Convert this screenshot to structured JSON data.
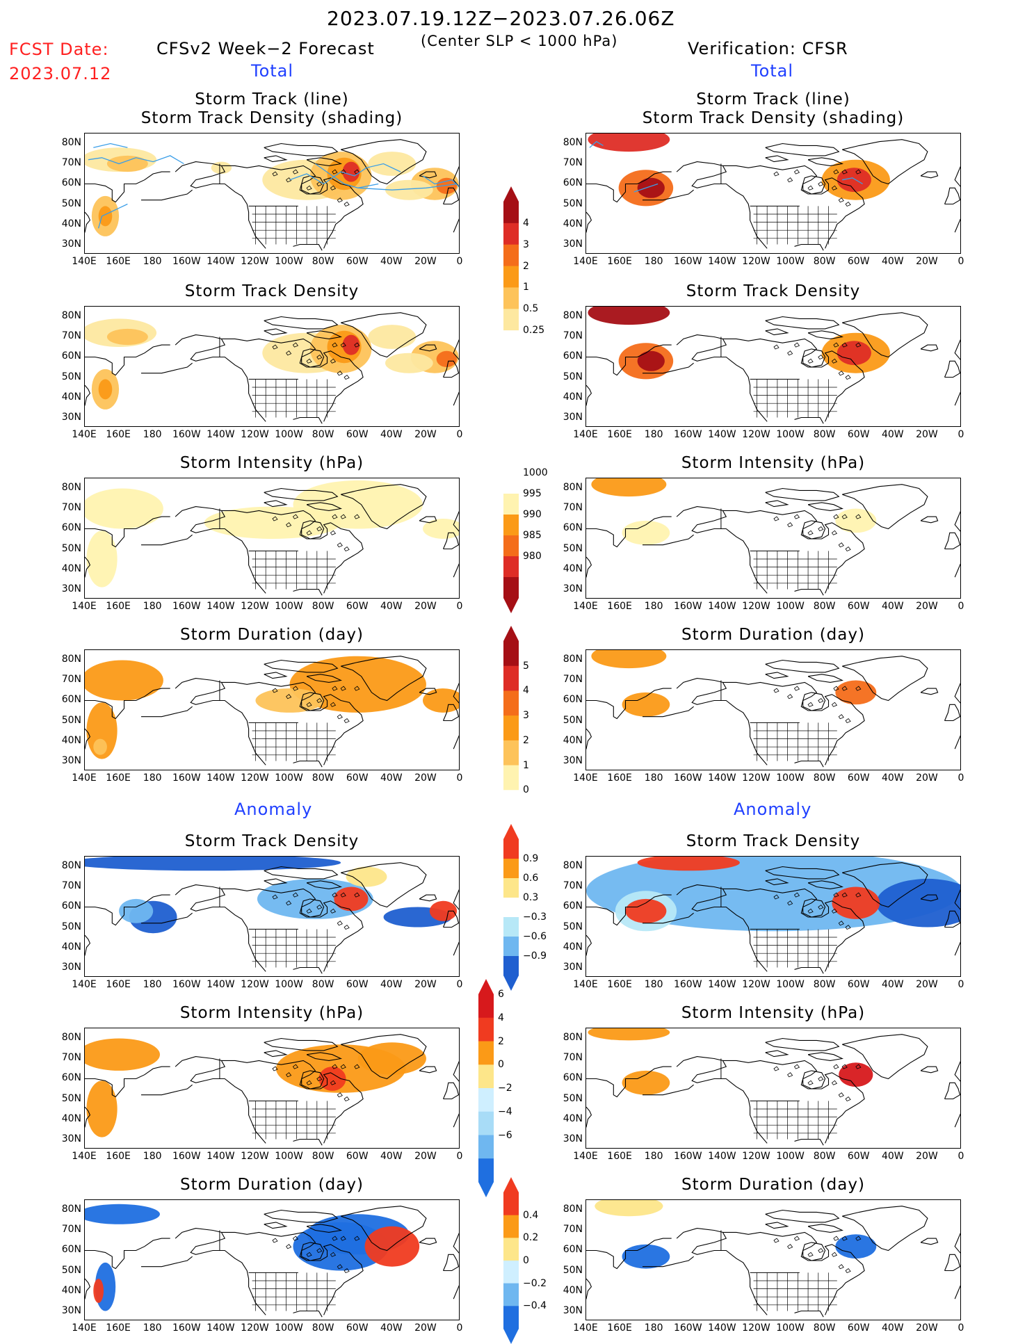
{
  "header": {
    "date_range": "2023.07.19.12Z−2023.07.26.06Z",
    "fcst_label": "FCST Date:",
    "fcst_date": "2023.07.12",
    "left_title": "CFSv2 Week−2 Forecast",
    "center_sub": "(Center SLP < 1000 hPa)",
    "right_title": "Verification: CFSR",
    "left_total": "Total",
    "right_total": "Total",
    "left_anomaly": "Anomaly",
    "right_anomaly": "Anomaly"
  },
  "panel_titles": {
    "track_line": "Storm Track (line)",
    "track_density_shading": "Storm Track Density (shading)",
    "density": "Storm Track Density",
    "intensity": "Storm Intensity (hPa)",
    "duration": "Storm Duration (day)"
  },
  "axes": {
    "lat_labels": [
      "80N",
      "70N",
      "60N",
      "50N",
      "40N",
      "30N"
    ],
    "lon_labels": [
      "140E",
      "160E",
      "180",
      "160W",
      "140W",
      "120W",
      "100W",
      "80W",
      "60W",
      "40W",
      "20W",
      "0"
    ]
  },
  "colorbars": {
    "density_total": {
      "labels": [
        "4",
        "3",
        "2",
        "1",
        "0.5",
        "0.25"
      ],
      "colors": [
        "#a50f15",
        "#de2d26",
        "#f46d1a",
        "#fb9a17",
        "#fdc35a",
        "#fde8a0",
        "#ffffff"
      ]
    },
    "intensity_total": {
      "labels": [
        "1000",
        "995",
        "990",
        "985",
        "980"
      ],
      "colors": [
        "#ffffff",
        "#fff3b0",
        "#fb9a17",
        "#f46d1a",
        "#de2d26",
        "#a50f15"
      ]
    },
    "duration_total": {
      "labels": [
        "5",
        "4",
        "3",
        "2",
        "1",
        "0"
      ],
      "colors": [
        "#a50f15",
        "#de2d26",
        "#f46d1a",
        "#fb9a17",
        "#fdc35a",
        "#fff3b0",
        "#ffffff"
      ]
    },
    "density_anom": {
      "labels": [
        "0.9",
        "0.6",
        "0.3",
        "−0.3",
        "−0.6",
        "−0.9"
      ],
      "colors": [
        "#f03b20",
        "#fb9a17",
        "#fde68a",
        "#ffffff",
        "#b7e8f7",
        "#6fb7f0",
        "#1f5fd0"
      ]
    },
    "intensity_anom": {
      "labels": [
        "6",
        "4",
        "2",
        "0",
        "−2",
        "−4",
        "−6"
      ],
      "colors": [
        "#d7191c",
        "#f03b20",
        "#fb9a17",
        "#fde68a",
        "#cfefff",
        "#a8dcf7",
        "#6fb7f0",
        "#1f6fe0"
      ]
    },
    "duration_anom": {
      "labels": [
        "0.4",
        "0.2",
        "0",
        "−0.2",
        "−0.4"
      ],
      "colors": [
        "#f03b20",
        "#fb9a17",
        "#fde68a",
        "#cfefff",
        "#6fb7f0",
        "#1f6fe0"
      ]
    }
  },
  "colors": {
    "red_text": "#ff2020",
    "blue_text": "#1f3fff",
    "track_line": "#3a9ee8"
  }
}
